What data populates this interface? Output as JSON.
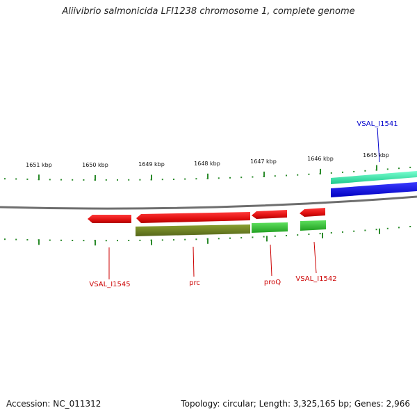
{
  "title": "Aliivibrio salmonicida LFI1238 chromosome 1, complete genome",
  "footer": {
    "accession": "Accession: NC_011312",
    "summary": "Topology: circular; Length: 3,325,165 bp; Genes: 2,966"
  },
  "scale_labels": [
    "1651 kbp",
    "1650 kbp",
    "1649 kbp",
    "1648 kbp",
    "1647 kbp",
    "1646 kbp",
    "1645 kbp"
  ],
  "gene_labels": [
    {
      "text": "VSAL_I1545",
      "color": "#cc0000"
    },
    {
      "text": "prc",
      "color": "#cc0000"
    },
    {
      "text": "proQ",
      "color": "#cc0000"
    },
    {
      "text": "VSAL_I1542",
      "color": "#cc0000"
    },
    {
      "text": "VSAL_I1541",
      "color": "#0000cc"
    }
  ],
  "colors": {
    "cds_red": "#e81414",
    "cds_green": "#2ebd2e",
    "cds_olive": "#6b7f1e",
    "cds_teal": "#22d49a",
    "cds_blue": "#0a0ad8",
    "backbone": "#7a7a7a",
    "tick_green": "#2a8a2a"
  }
}
